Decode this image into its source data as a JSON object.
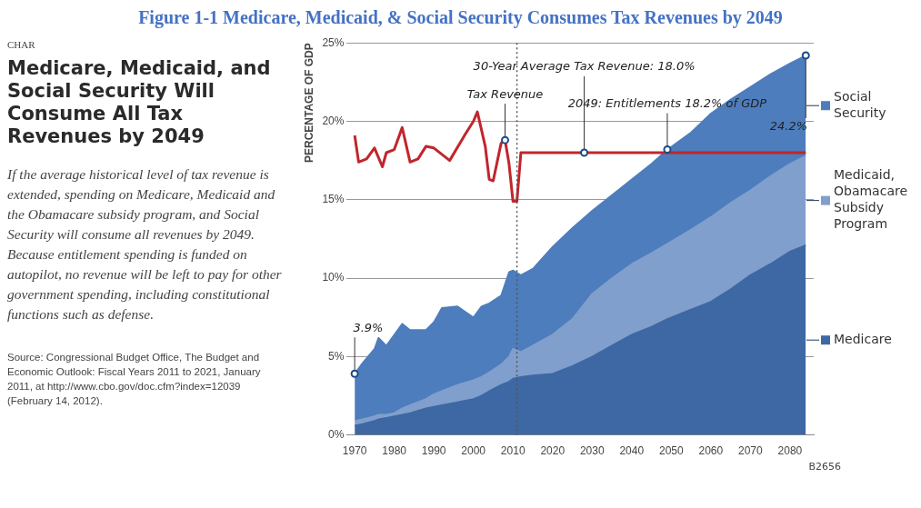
{
  "chart_data": {
    "type": "area",
    "title": "Figure 1-1 Medicare, Medicaid, & Social Security Consumes Tax Revenues by 2049",
    "subtitle": "Medicare, Medicaid, and Social Security Will Consume All Tax Revenues by 2049",
    "ylabel": "PERCENTAGE OF GDP",
    "annotations": [
      "CHAR",
      "If the average historical level of tax revenue is extended, spending on Medicare, Medicaid and the Obamacare subsidy program, and Social Security will consume all revenues by 2049. Because entitlement spending is funded on autopilot, no revenue will be left to pay for other government spending, including constitutional functions such as defense.",
      "Source: Congressional Budget Office, The Budget and Economic Outlook: Fiscal Years 2011 to 2021, January 2011, at http://www.cbo.gov/doc.cfm?index=12039 (February 14, 2012).",
      "B2656",
      {
        "text": "3.9%",
        "x": 1970,
        "y": 3.9
      },
      {
        "text": "Tax Revenue",
        "x": 2008,
        "y": 18.8
      },
      {
        "text": "30-Year Average Tax Revenue: 18.0%",
        "x": 2028,
        "y": 18
      },
      {
        "text": "2049: Entitlements 18.2% of GDP",
        "x": 2049,
        "y": 18.2
      },
      {
        "text": "24.2%",
        "x": 2084,
        "y": 24.2
      }
    ],
    "x": [
      1970,
      1972,
      1975,
      1976,
      1978,
      1980,
      1982,
      1984,
      1988,
      1990,
      1992,
      1996,
      2000,
      2002,
      2004,
      2007,
      2009,
      2010,
      2012,
      2015,
      2020,
      2025,
      2030,
      2035,
      2040,
      2045,
      2049,
      2055,
      2060,
      2065,
      2070,
      2075,
      2080,
      2084
    ],
    "stacked": true,
    "series": [
      {
        "name": "Medicare",
        "color": "#3e68a3",
        "values": [
          0.6,
          0.7,
          0.9,
          1.0,
          1.1,
          1.2,
          1.3,
          1.4,
          1.7,
          1.8,
          1.9,
          2.1,
          2.3,
          2.5,
          2.8,
          3.2,
          3.4,
          3.6,
          3.7,
          3.8,
          3.9,
          4.4,
          5.0,
          5.7,
          6.4,
          6.9,
          7.4,
          8.0,
          8.5,
          9.3,
          10.2,
          10.9,
          11.7,
          12.1
        ]
      },
      {
        "name": "Medicaid, Obamacare Subsidy Program",
        "color": "#809fcc",
        "values": [
          0.3,
          0.3,
          0.3,
          0.3,
          0.2,
          0.2,
          0.4,
          0.5,
          0.6,
          0.8,
          0.9,
          1.1,
          1.2,
          1.2,
          1.2,
          1.3,
          1.6,
          1.9,
          1.6,
          1.9,
          2.5,
          3.0,
          4.0,
          4.3,
          4.5,
          4.7,
          4.8,
          5.1,
          5.4,
          5.5,
          5.4,
          5.6,
          5.6,
          5.7
        ]
      },
      {
        "name": "Social Security",
        "color": "#4d7dbd",
        "values": [
          3.0,
          3.6,
          4.3,
          4.9,
          4.4,
          5.0,
          5.4,
          4.8,
          4.4,
          4.6,
          5.3,
          5.0,
          4.0,
          4.5,
          4.4,
          4.4,
          5.4,
          5.0,
          4.9,
          4.9,
          5.6,
          5.8,
          5.3,
          5.3,
          5.4,
          5.7,
          6.0,
          6.2,
          6.6,
          6.6,
          6.6,
          6.5,
          6.4,
          6.4
        ]
      },
      {
        "type": "line",
        "color": "#c0262c",
        "x": [
          1970,
          1971,
          1973,
          1975,
          1977,
          1978,
          1980,
          1982,
          1984,
          1986,
          1988,
          1990,
          1994,
          1998,
          2000,
          2001,
          2003,
          2004,
          2005,
          2007,
          2008,
          2009,
          2010,
          2011,
          2012,
          2084
        ],
        "values": [
          19.1,
          17.4,
          17.6,
          18.3,
          17.1,
          18.0,
          18.2,
          19.6,
          17.4,
          17.6,
          18.4,
          18.3,
          17.5,
          19.2,
          20.0,
          20.6,
          18.4,
          16.3,
          16.2,
          18.6,
          18.8,
          17.3,
          14.9,
          14.9,
          18.0,
          18.0
        ]
      }
    ],
    "xlim": [
      1968,
      2086
    ],
    "xticks": [
      1970,
      1980,
      1990,
      2000,
      2010,
      2020,
      2030,
      2040,
      2050,
      2060,
      2070,
      2080
    ],
    "ylim": [
      0,
      25
    ],
    "yticks": [
      {
        "value": 0,
        "label": "0%"
      },
      {
        "value": 5,
        "label": "5%"
      },
      {
        "value": 10,
        "label": "10%"
      },
      {
        "value": 15,
        "label": "15%"
      },
      {
        "value": 20,
        "label": "20%"
      },
      {
        "value": 25,
        "label": "25%"
      }
    ],
    "ref_lines": [
      {
        "axis": "x",
        "value": 2011,
        "line_style": "dotted",
        "color": "#555555"
      }
    ],
    "grid": "y",
    "legend": "right",
    "marker": "none"
  }
}
